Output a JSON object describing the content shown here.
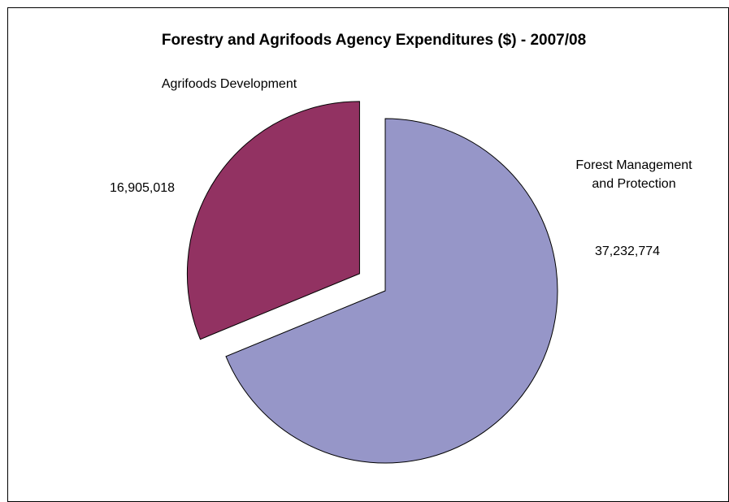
{
  "chart_data": {
    "type": "pie",
    "title": "Forestry and Agrifoods Agency Expenditures ($) - 2007/08",
    "slices": [
      {
        "name": "Forest Management and Protection",
        "name_lines": [
          "Forest Management",
          "and Protection"
        ],
        "value": 37232774,
        "value_label": "37,232,774",
        "color": "#9696c8",
        "exploded": false
      },
      {
        "name": "Agrifoods Development",
        "name_lines": [
          "Agrifoods Development"
        ],
        "value": 16905018,
        "value_label": "16,905,018",
        "color": "#923262",
        "exploded": true
      }
    ],
    "legend": "none"
  }
}
